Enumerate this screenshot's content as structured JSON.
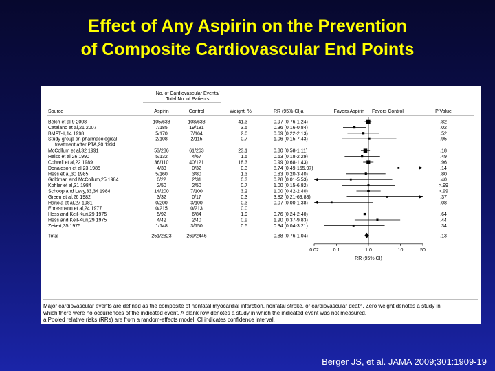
{
  "slide": {
    "title_line1": "Effect of Any Aspirin on the Prevention",
    "title_line2": "of Composite Cardiovascular End Points",
    "citation": "Berger JS, et al. JAMA 2009;301:1909-19",
    "footnote_line1": "Major cardiovascular events are defined as the composite of nonfatal myocardial infarction, nonfatal stroke, or cardiovascular death. Zero weight denotes a study in",
    "footnote_line2": "which there were no occurrences of the indicated event. A blank row denotes a study in which the indicated event was not measured.",
    "footnote_line3": "a Pooled relative risks (RRs) are from a random-effects model. CI indicates confidence interval."
  },
  "colors": {
    "title": "#ffff00",
    "marker": "#000000",
    "panel": "#ffffff"
  },
  "chart_data": {
    "type": "forest",
    "header_group": "No. of Cardiovascular Events/ Total No. of Patients",
    "columns": {
      "source": "Source",
      "aspirin": "Aspirin",
      "control": "Control",
      "weight": "Weight, %",
      "rr": "RR (95% CI)a",
      "favors_left": "Favors Aspirin",
      "favors_right": "Favors Control",
      "p": "P Value"
    },
    "xlabel": "RR (95% CI)",
    "xscale": "log",
    "xlim": [
      0.02,
      50
    ],
    "xticks": [
      0.02,
      0.1,
      1.0,
      10,
      50
    ],
    "xtick_labels": [
      "0.02",
      "0.1",
      "1.0",
      "10",
      "50"
    ],
    "studies": [
      {
        "source": "Belch et al,9 2008",
        "aspirin": "105/638",
        "control": "108/638",
        "weight": "41.3",
        "rr_text": "0.97 (0.76-1.24)",
        "rr": 0.97,
        "lo": 0.76,
        "hi": 1.24,
        "p": ".82"
      },
      {
        "source": "Catalano et al,21 2007",
        "aspirin": "7/185",
        "control": "19/181",
        "weight": "3.5",
        "rr_text": "0.36 (0.16-0.84)",
        "rr": 0.36,
        "lo": 0.16,
        "hi": 0.84,
        "p": ".02"
      },
      {
        "source": "BMFT-II,14 1998",
        "aspirin": "5/170",
        "control": "7/164",
        "weight": "2.0",
        "rr_text": "0.69 (0.22-2.13)",
        "rr": 0.69,
        "lo": 0.22,
        "hi": 2.13,
        "p": ".52"
      },
      {
        "source": "Study group on pharmacological",
        "source2": "treatment after PTA,20 1994",
        "aspirin": "2/108",
        "control": "2/115",
        "weight": "0.7",
        "rr_text": "1.06 (0.15-7.43)",
        "rr": 1.06,
        "lo": 0.15,
        "hi": 7.43,
        "p": ".95"
      },
      {
        "source": "McCollum et al,32 1991",
        "aspirin": "53/286",
        "control": "61/263",
        "weight": "23.1",
        "rr_text": "0.80 (0.58-1.11)",
        "rr": 0.8,
        "lo": 0.58,
        "hi": 1.11,
        "p": ".18"
      },
      {
        "source": "Heiss et al,26 1990",
        "aspirin": "5/132",
        "control": "4/67",
        "weight": "1.5",
        "rr_text": "0.63 (0.18-2.29)",
        "rr": 0.63,
        "lo": 0.18,
        "hi": 2.29,
        "p": ".49"
      },
      {
        "source": "Colwell et al,22 1989",
        "aspirin": "36/110",
        "control": "40/121",
        "weight": "18.3",
        "rr_text": "0.99 (0.68-1.43)",
        "rr": 0.99,
        "lo": 0.68,
        "hi": 1.43,
        "p": ".96"
      },
      {
        "source": "Donaldson et al,23 1985",
        "aspirin": "4/33",
        "control": "0/32",
        "weight": "0.3",
        "rr_text": "8.74 (0.49-155.97)",
        "rr": 8.74,
        "lo": 0.49,
        "hi": 155.97,
        "p": ".14"
      },
      {
        "source": "Hess et al,30 1985",
        "aspirin": "5/160",
        "control": "3/80",
        "weight": "1.3",
        "rr_text": "0.83 (0.20-3.40)",
        "rr": 0.83,
        "lo": 0.2,
        "hi": 3.4,
        "p": ".80"
      },
      {
        "source": "Goldman and McCollum,25 1984",
        "aspirin": "0/22",
        "control": "2/31",
        "weight": "0.3",
        "rr_text": "0.28 (0.01-5.53)",
        "rr": 0.28,
        "lo": 0.01,
        "hi": 5.53,
        "p": ".40"
      },
      {
        "source": "Kohler et al,31 1984",
        "aspirin": "2/50",
        "control": "2/50",
        "weight": "0.7",
        "rr_text": "1.00 (0.15-6.82)",
        "rr": 1.0,
        "lo": 0.15,
        "hi": 6.82,
        "p": ">.99"
      },
      {
        "source": "Schoop and Levy,33,34 1984",
        "aspirin": "14/200",
        "control": "7/100",
        "weight": "3.2",
        "rr_text": "1.00 (0.42-2.40)",
        "rr": 1.0,
        "lo": 0.42,
        "hi": 2.4,
        "p": ">.99"
      },
      {
        "source": "Green et al,26 1982",
        "aspirin": "3/32",
        "control": "0/17",
        "weight": "0.3",
        "rr_text": "3.82 (0.21-69.88)",
        "rr": 3.82,
        "lo": 0.21,
        "hi": 69.88,
        "p": ".37"
      },
      {
        "source": "Harjola et al,27 1981",
        "aspirin": "0/200",
        "control": "3/100",
        "weight": "0.3",
        "rr_text": "0.07 (0.00-1.38)",
        "rr": 0.07,
        "lo": 0.0,
        "hi": 1.38,
        "p": ".08"
      },
      {
        "source": "Ehresmann et al,24 1977",
        "aspirin": "0/215",
        "control": "0/213",
        "weight": "0.0",
        "rr_text": "",
        "rr": null,
        "lo": null,
        "hi": null,
        "p": ""
      },
      {
        "source": "Hess and Keil-Kuri,29 1975",
        "aspirin": "5/92",
        "control": "6/84",
        "weight": "1.9",
        "rr_text": "0.76 (0.24-2.40)",
        "rr": 0.76,
        "lo": 0.24,
        "hi": 2.4,
        "p": ".64"
      },
      {
        "source": "Hess and Keil-Kuri,29 1975",
        "aspirin": "4/42",
        "control": "2/40",
        "weight": "0.9",
        "rr_text": "1.90 (0.37-9.83)",
        "rr": 1.9,
        "lo": 0.37,
        "hi": 9.83,
        "p": ".44"
      },
      {
        "source": "Zekert,35 1975",
        "aspirin": "1/148",
        "control": "3/150",
        "weight": "0.5",
        "rr_text": "0.34 (0.04-3.21)",
        "rr": 0.34,
        "lo": 0.04,
        "hi": 3.21,
        "p": ".34"
      }
    ],
    "total": {
      "source": "Total",
      "aspirin": "251/2823",
      "control": "269/2446",
      "weight": "",
      "rr_text": "0.88 (0.76-1.04)",
      "rr": 0.88,
      "lo": 0.76,
      "hi": 1.04,
      "p": ".13"
    }
  }
}
